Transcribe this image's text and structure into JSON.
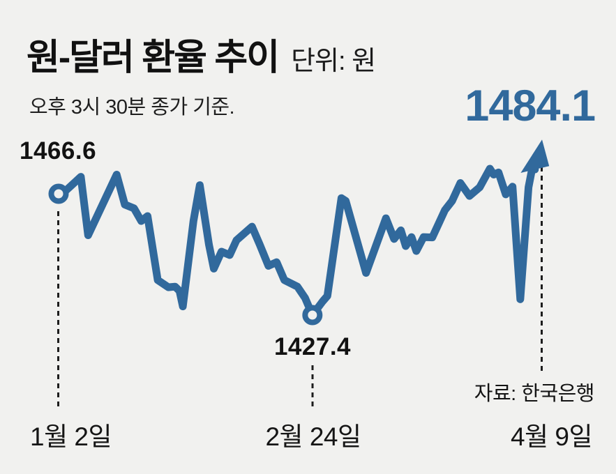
{
  "header": {
    "title": "원-달러 환율 추이",
    "unit_label": "단위: 원",
    "subtitle": "오후 3시 30분 종가 기준."
  },
  "labels": {
    "start_value": "1466.6",
    "min_value": "1427.4",
    "end_value": "1484.1",
    "start_date": "1월 2일",
    "min_date": "2월 24일",
    "end_date": "4월 9일",
    "source": "자료: 한국은행"
  },
  "colors": {
    "background": "#F1F1EF",
    "line": "#31699C",
    "highlight_value": "#31699C",
    "text": "#161616",
    "dash": "#1d1d1d"
  },
  "chart_data": {
    "type": "line",
    "title": "원-달러 환율 추이",
    "unit": "원",
    "note": "오후 3시 30분 종가 기준",
    "xlabel": "",
    "ylabel": "원",
    "x_range_labels": [
      "1월 2일",
      "4월 9일"
    ],
    "ylim": [
      1420,
      1490
    ],
    "grid": false,
    "legend": false,
    "source": "한국은행",
    "key_points": [
      {
        "date": "1월 2일",
        "value": 1466.6,
        "marker": "open-circle"
      },
      {
        "date": "2월 24일",
        "value": 1427.4,
        "marker": "open-circle"
      },
      {
        "date": "4월 9일",
        "value": 1484.1,
        "marker": "arrow-up"
      }
    ],
    "series": [
      {
        "name": "원-달러 환율 (종가)",
        "points_format": "[x_fraction_of_timeline, value_won] (values between labeled points estimated from line position)",
        "points": [
          [
            0.0,
            1466.6
          ],
          [
            0.014,
            1467.5
          ],
          [
            0.046,
            1472.1
          ],
          [
            0.061,
            1453.2
          ],
          [
            0.12,
            1472.8
          ],
          [
            0.137,
            1463.1
          ],
          [
            0.156,
            1461.9
          ],
          [
            0.171,
            1457.8
          ],
          [
            0.184,
            1459.4
          ],
          [
            0.205,
            1438.7
          ],
          [
            0.227,
            1436.4
          ],
          [
            0.241,
            1436.6
          ],
          [
            0.25,
            1435.2
          ],
          [
            0.257,
            1430.2
          ],
          [
            0.279,
            1457.8
          ],
          [
            0.292,
            1469.4
          ],
          [
            0.311,
            1450.2
          ],
          [
            0.321,
            1442.4
          ],
          [
            0.337,
            1447.9
          ],
          [
            0.354,
            1446.8
          ],
          [
            0.368,
            1451.6
          ],
          [
            0.4,
            1456.0
          ],
          [
            0.416,
            1450.2
          ],
          [
            0.434,
            1443.3
          ],
          [
            0.451,
            1444.5
          ],
          [
            0.467,
            1438.7
          ],
          [
            0.494,
            1436.6
          ],
          [
            0.51,
            1432.9
          ],
          [
            0.525,
            1427.4
          ],
          [
            0.546,
            1431.8
          ],
          [
            0.556,
            1433.6
          ],
          [
            0.585,
            1465.2
          ],
          [
            0.594,
            1464.3
          ],
          [
            0.636,
            1441.0
          ],
          [
            0.677,
            1458.7
          ],
          [
            0.694,
            1452.0
          ],
          [
            0.708,
            1454.8
          ],
          [
            0.718,
            1449.7
          ],
          [
            0.73,
            1452.6
          ],
          [
            0.74,
            1448.1
          ],
          [
            0.755,
            1452.6
          ],
          [
            0.773,
            1452.5
          ],
          [
            0.799,
            1461.3
          ],
          [
            0.814,
            1464.3
          ],
          [
            0.831,
            1470.1
          ],
          [
            0.85,
            1465.9
          ],
          [
            0.871,
            1468.7
          ],
          [
            0.892,
            1474.7
          ],
          [
            0.9,
            1472.8
          ],
          [
            0.91,
            1473.5
          ],
          [
            0.925,
            1466.4
          ],
          [
            0.939,
            1468.9
          ],
          [
            0.955,
            1432.5
          ],
          [
            0.972,
            1468.7
          ],
          [
            0.98,
            1475.1
          ],
          [
            1.0,
            1484.1
          ]
        ]
      }
    ]
  }
}
